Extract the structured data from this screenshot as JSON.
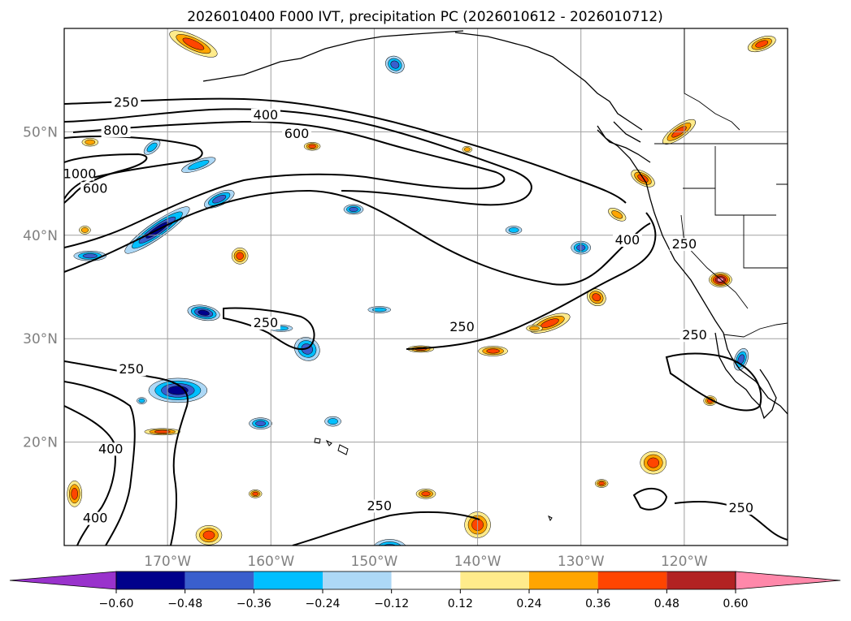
{
  "chart_data": {
    "type": "heatmap",
    "title": "2026010400 F000 IVT, precipitation PC (2026010612 - 2026010712)",
    "lon_range": [
      -180,
      -110
    ],
    "lat_range": [
      10,
      60
    ],
    "lat_ticks": [
      {
        "value": 20,
        "label": "20°N"
      },
      {
        "value": 30,
        "label": "30°N"
      },
      {
        "value": 40,
        "label": "40°N"
      },
      {
        "value": 50,
        "label": "50°N"
      }
    ],
    "lon_ticks": [
      {
        "value": -170,
        "label": "170°W"
      },
      {
        "value": -160,
        "label": "160°W"
      },
      {
        "value": -150,
        "label": "150°W"
      },
      {
        "value": -140,
        "label": "140°W"
      },
      {
        "value": -130,
        "label": "130°W"
      },
      {
        "value": -120,
        "label": "120°W"
      }
    ],
    "grid": true,
    "colorbar": {
      "levels": [
        "-0.60",
        "-0.48",
        "-0.36",
        "-0.24",
        "-0.12",
        "0.12",
        "0.24",
        "0.36",
        "0.48",
        "0.60"
      ],
      "extend": "both",
      "colors": [
        "#9932cc",
        "#00008b",
        "#3a5fcd",
        "#00bfff",
        "#add8f6",
        "#ffffff",
        "#ffeb8b",
        "#ffa500",
        "#ff4500",
        "#b22222",
        "#ff88aa"
      ]
    },
    "ivt_contour_levels": [
      250,
      400,
      600,
      800,
      1000
    ],
    "ivt_contour_labels": [
      {
        "text": "250",
        "lon": -174,
        "lat": 52.5
      },
      {
        "text": "400",
        "lon": -160.5,
        "lat": 51.3
      },
      {
        "text": "600",
        "lon": -157.5,
        "lat": 49.5
      },
      {
        "text": "800",
        "lon": -175,
        "lat": 49.8
      },
      {
        "text": "1000",
        "lon": -178.5,
        "lat": 45.6
      },
      {
        "text": "600",
        "lon": -177,
        "lat": 44.2
      },
      {
        "text": "400",
        "lon": -125.5,
        "lat": 39.2
      },
      {
        "text": "250",
        "lon": -120,
        "lat": 38.8
      },
      {
        "text": "250",
        "lon": -160.5,
        "lat": 31.2
      },
      {
        "text": "250",
        "lon": -141.5,
        "lat": 30.8
      },
      {
        "text": "250",
        "lon": -173.5,
        "lat": 26.7
      },
      {
        "text": "400",
        "lon": -175.5,
        "lat": 19.0
      },
      {
        "text": "250",
        "lon": -119,
        "lat": 30.0
      },
      {
        "text": "250",
        "lon": -149.5,
        "lat": 13.5
      },
      {
        "text": "400",
        "lon": -177,
        "lat": 12.3
      },
      {
        "text": "250",
        "lon": -114.5,
        "lat": 13.3
      }
    ],
    "precip_pc_areas": [
      {
        "lon": -167.5,
        "lat": 58.5,
        "rx": 32,
        "ry": 10,
        "rot": 25,
        "v": 0.45
      },
      {
        "lon": -171,
        "lat": 40.5,
        "rx": 48,
        "ry": 10,
        "rot": -35,
        "v": -0.5
      },
      {
        "lon": -165,
        "lat": 43.5,
        "rx": 20,
        "ry": 8,
        "rot": -25,
        "v": -0.4
      },
      {
        "lon": -167,
        "lat": 46.8,
        "rx": 22,
        "ry": 6,
        "rot": -20,
        "v": -0.35
      },
      {
        "lon": -171.5,
        "lat": 48.5,
        "rx": 12,
        "ry": 6,
        "rot": -40,
        "v": -0.3
      },
      {
        "lon": -169,
        "lat": 25,
        "rx": 36,
        "ry": 15,
        "rot": 0,
        "v": -0.5
      },
      {
        "lon": -166.5,
        "lat": 32.5,
        "rx": 20,
        "ry": 9,
        "rot": 10,
        "v": -0.48
      },
      {
        "lon": -170.5,
        "lat": 21,
        "rx": 22,
        "ry": 4,
        "rot": 0,
        "v": 0.42
      },
      {
        "lon": -156.5,
        "lat": 29,
        "rx": 16,
        "ry": 14,
        "rot": 30,
        "v": -0.45
      },
      {
        "lon": -159,
        "lat": 31,
        "rx": 14,
        "ry": 4,
        "rot": 0,
        "v": -0.3
      },
      {
        "lon": -152,
        "lat": 42.5,
        "rx": 12,
        "ry": 6,
        "rot": 0,
        "v": -0.4
      },
      {
        "lon": -148,
        "lat": 56.5,
        "rx": 12,
        "ry": 10,
        "rot": 30,
        "v": -0.38
      },
      {
        "lon": -156,
        "lat": 48.6,
        "rx": 10,
        "ry": 5,
        "rot": 0,
        "v": 0.4
      },
      {
        "lon": -163,
        "lat": 38,
        "rx": 10,
        "ry": 10,
        "rot": 0,
        "v": 0.45
      },
      {
        "lon": -161,
        "lat": 21.8,
        "rx": 14,
        "ry": 7,
        "rot": 0,
        "v": -0.4
      },
      {
        "lon": -154,
        "lat": 22,
        "rx": 10,
        "ry": 6,
        "rot": 0,
        "v": -0.35
      },
      {
        "lon": -148.5,
        "lat": 9.5,
        "rx": 22,
        "ry": 14,
        "rot": 0,
        "v": -0.5
      },
      {
        "lon": -149.5,
        "lat": 32.8,
        "rx": 14,
        "ry": 4,
        "rot": 0,
        "v": -0.3
      },
      {
        "lon": -145.5,
        "lat": 29,
        "rx": 16,
        "ry": 4,
        "rot": 0,
        "v": 0.38
      },
      {
        "lon": -138.5,
        "lat": 28.8,
        "rx": 18,
        "ry": 6,
        "rot": 0,
        "v": 0.45
      },
      {
        "lon": -133,
        "lat": 31.5,
        "rx": 26,
        "ry": 9,
        "rot": -20,
        "v": 0.38
      },
      {
        "lon": -128.5,
        "lat": 34,
        "rx": 12,
        "ry": 10,
        "rot": 30,
        "v": 0.45
      },
      {
        "lon": -134.5,
        "lat": 31,
        "rx": 10,
        "ry": 4,
        "rot": 0,
        "v": 0.32
      },
      {
        "lon": -120.5,
        "lat": 50,
        "rx": 24,
        "ry": 8,
        "rot": -35,
        "v": 0.42
      },
      {
        "lon": -124,
        "lat": 45.5,
        "rx": 16,
        "ry": 8,
        "rot": 30,
        "v": 0.42
      },
      {
        "lon": -126.5,
        "lat": 42,
        "rx": 12,
        "ry": 6,
        "rot": 30,
        "v": 0.35
      },
      {
        "lon": -130,
        "lat": 38.8,
        "rx": 12,
        "ry": 8,
        "rot": 0,
        "v": -0.36
      },
      {
        "lon": -123,
        "lat": 18,
        "rx": 16,
        "ry": 14,
        "rot": 0,
        "v": 0.45
      },
      {
        "lon": -116.5,
        "lat": 35.7,
        "rx": 14,
        "ry": 9,
        "rot": 0,
        "v": 0.62
      },
      {
        "lon": -112.5,
        "lat": 58.5,
        "rx": 18,
        "ry": 8,
        "rot": -20,
        "v": 0.4
      },
      {
        "lon": -140,
        "lat": 12,
        "rx": 16,
        "ry": 16,
        "rot": 0,
        "v": 0.45
      },
      {
        "lon": -166,
        "lat": 11,
        "rx": 16,
        "ry": 12,
        "rot": 0,
        "v": 0.42
      },
      {
        "lon": -179,
        "lat": 15,
        "rx": 9,
        "ry": 16,
        "rot": 0,
        "v": 0.45
      },
      {
        "lon": -161.5,
        "lat": 15,
        "rx": 8,
        "ry": 5,
        "rot": 0,
        "v": 0.38
      },
      {
        "lon": -145,
        "lat": 15,
        "rx": 12,
        "ry": 6,
        "rot": 0,
        "v": 0.38
      },
      {
        "lon": -177.5,
        "lat": 38,
        "rx": 20,
        "ry": 6,
        "rot": 0,
        "v": -0.4
      },
      {
        "lon": -172.5,
        "lat": 24,
        "rx": 6,
        "ry": 4,
        "rot": 0,
        "v": -0.3
      },
      {
        "lon": -178,
        "lat": 40.5,
        "rx": 7,
        "ry": 5,
        "rot": 0,
        "v": 0.35
      },
      {
        "lon": -177.5,
        "lat": 49,
        "rx": 10,
        "ry": 5,
        "rot": 0,
        "v": 0.3
      },
      {
        "lon": -114.5,
        "lat": 28,
        "rx": 8,
        "ry": 14,
        "rot": 20,
        "v": -0.36
      },
      {
        "lon": -117.5,
        "lat": 24,
        "rx": 8,
        "ry": 6,
        "rot": 0,
        "v": 0.4
      },
      {
        "lon": -128,
        "lat": 16,
        "rx": 8,
        "ry": 5,
        "rot": 0,
        "v": 0.38
      },
      {
        "lon": -136.5,
        "lat": 40.5,
        "rx": 10,
        "ry": 5,
        "rot": 0,
        "v": -0.3
      },
      {
        "lon": -141,
        "lat": 48.3,
        "rx": 6,
        "ry": 4,
        "rot": 0,
        "v": 0.32
      }
    ]
  }
}
